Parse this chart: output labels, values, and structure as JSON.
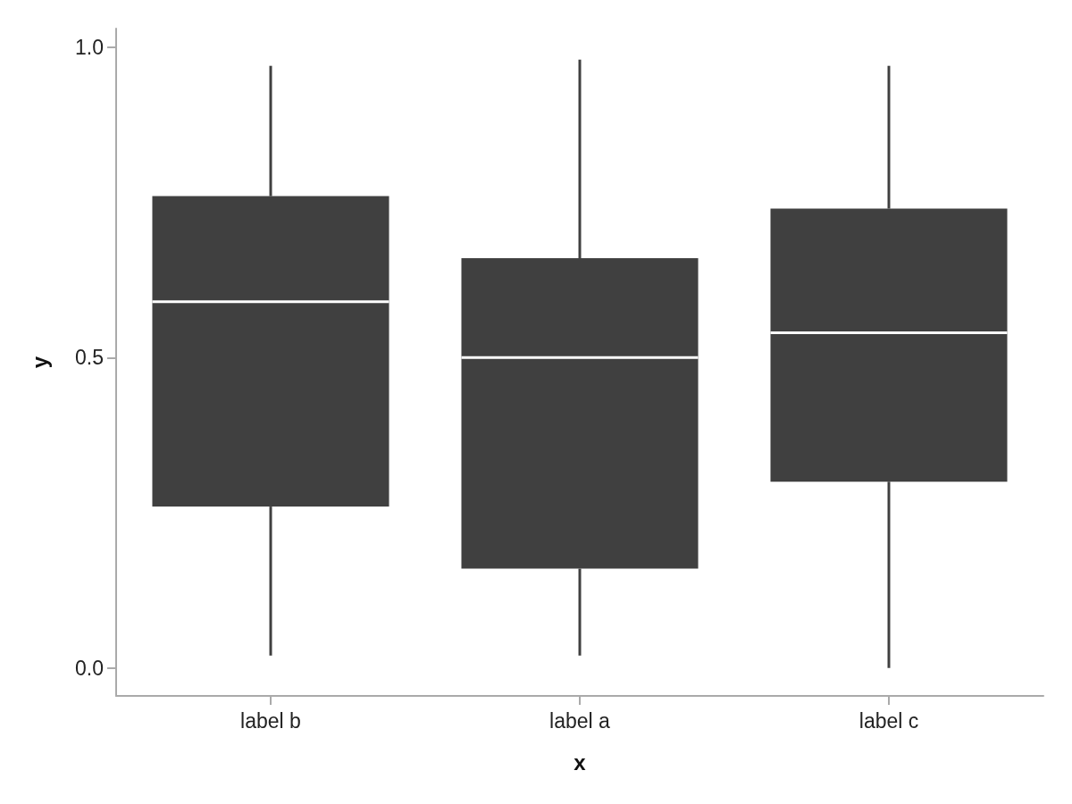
{
  "chart_data": {
    "type": "box",
    "xlabel": "x",
    "ylabel": "y",
    "color": "#404040",
    "categories": [
      "label b",
      "label a",
      "label c"
    ],
    "boxes": [
      {
        "low": 0.02,
        "q1": 0.26,
        "median": 0.59,
        "q3": 0.76,
        "high": 0.97
      },
      {
        "low": 0.02,
        "q1": 0.16,
        "median": 0.5,
        "q3": 0.66,
        "high": 0.98
      },
      {
        "low": 0.0,
        "q1": 0.3,
        "median": 0.54,
        "q3": 0.74,
        "high": 0.97
      }
    ],
    "ylim": [
      -0.045,
      1.03
    ],
    "yticks": [
      {
        "value": 0,
        "label": "0.0"
      },
      {
        "value": 0.5,
        "label": "0.5"
      },
      {
        "value": 1,
        "label": "1.0"
      }
    ]
  }
}
